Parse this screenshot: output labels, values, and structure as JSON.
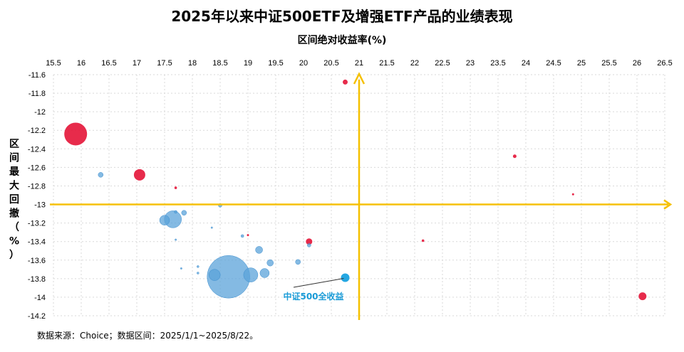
{
  "chart_data": {
    "type": "scatter",
    "title": "2025年以来中证500ETF及增强ETF产品的业绩表现",
    "xlabel": "区间绝对收益率(%)",
    "ylabel": "区间最大回撤（%）",
    "xlim": [
      15.5,
      26.5
    ],
    "ylim": [
      -14.2,
      -11.6
    ],
    "xticks": [
      "15.5",
      "16",
      "16.5",
      "17",
      "17.5",
      "18",
      "18.5",
      "19",
      "19.5",
      "20",
      "20.5",
      "21",
      "21.5",
      "22",
      "22.5",
      "23",
      "23.5",
      "24",
      "24.5",
      "25",
      "25.5",
      "26",
      "26.5"
    ],
    "yticks": [
      "-11.6",
      "-11.8",
      "-12",
      "-12.2",
      "-12.4",
      "-12.6",
      "-12.8",
      "-13",
      "-13.2",
      "-13.4",
      "-13.6",
      "-13.8",
      "-14",
      "-14.2"
    ],
    "grid": true,
    "crosshair": {
      "x": 21.0,
      "y": -13.0,
      "color": "#f5c000"
    },
    "annotation": {
      "text": "中证500全收益",
      "x": 20.8,
      "y": -13.79
    },
    "source": "数据来源：Choice；数据区间：2025/1/1~2025/8/22。",
    "colors": {
      "red": "#e5193c",
      "blue": "#5ba3d9",
      "highlight": "#12a0e0"
    },
    "points": [
      {
        "x": 15.9,
        "y": -12.24,
        "size": 16,
        "color": "red"
      },
      {
        "x": 17.05,
        "y": -12.68,
        "size": 8,
        "color": "red"
      },
      {
        "x": 17.7,
        "y": -12.82,
        "size": 1.8,
        "color": "red"
      },
      {
        "x": 20.75,
        "y": -11.68,
        "size": 3.5,
        "color": "red"
      },
      {
        "x": 23.8,
        "y": -12.48,
        "size": 2.5,
        "color": "red"
      },
      {
        "x": 24.85,
        "y": -12.89,
        "size": 1.5,
        "color": "red"
      },
      {
        "x": 20.1,
        "y": -13.4,
        "size": 4.5,
        "color": "red"
      },
      {
        "x": 22.15,
        "y": -13.39,
        "size": 1.8,
        "color": "red"
      },
      {
        "x": 19.0,
        "y": -13.33,
        "size": 1.5,
        "color": "red"
      },
      {
        "x": 26.1,
        "y": -13.99,
        "size": 5.5,
        "color": "red"
      },
      {
        "x": 16.35,
        "y": -12.68,
        "size": 3.5,
        "color": "blue"
      },
      {
        "x": 18.5,
        "y": -13.01,
        "size": 2.5,
        "color": "blue"
      },
      {
        "x": 17.65,
        "y": -13.16,
        "size": 12,
        "color": "blue"
      },
      {
        "x": 17.5,
        "y": -13.17,
        "size": 7,
        "color": "blue"
      },
      {
        "x": 17.85,
        "y": -13.09,
        "size": 3.5,
        "color": "blue"
      },
      {
        "x": 17.7,
        "y": -13.08,
        "size": 2,
        "color": "blue"
      },
      {
        "x": 18.35,
        "y": -13.25,
        "size": 1.2,
        "color": "blue"
      },
      {
        "x": 17.7,
        "y": -13.38,
        "size": 1.2,
        "color": "blue"
      },
      {
        "x": 18.9,
        "y": -13.34,
        "size": 2,
        "color": "blue"
      },
      {
        "x": 19.2,
        "y": -13.49,
        "size": 5,
        "color": "blue"
      },
      {
        "x": 19.4,
        "y": -13.63,
        "size": 4.5,
        "color": "blue"
      },
      {
        "x": 19.3,
        "y": -13.74,
        "size": 6.5,
        "color": "blue"
      },
      {
        "x": 19.05,
        "y": -13.76,
        "size": 10,
        "color": "blue"
      },
      {
        "x": 18.65,
        "y": -13.78,
        "size": 30,
        "color": "blue"
      },
      {
        "x": 18.4,
        "y": -13.76,
        "size": 8,
        "color": "blue"
      },
      {
        "x": 18.1,
        "y": -13.67,
        "size": 1.5,
        "color": "blue"
      },
      {
        "x": 18.1,
        "y": -13.74,
        "size": 1.5,
        "color": "blue"
      },
      {
        "x": 17.8,
        "y": -13.69,
        "size": 1.2,
        "color": "blue"
      },
      {
        "x": 19.9,
        "y": -13.62,
        "size": 3.5,
        "color": "blue"
      },
      {
        "x": 20.1,
        "y": -13.44,
        "size": 2.5,
        "color": "blue"
      },
      {
        "x": 20.75,
        "y": -13.79,
        "size": 6,
        "color": "highlight"
      }
    ]
  }
}
